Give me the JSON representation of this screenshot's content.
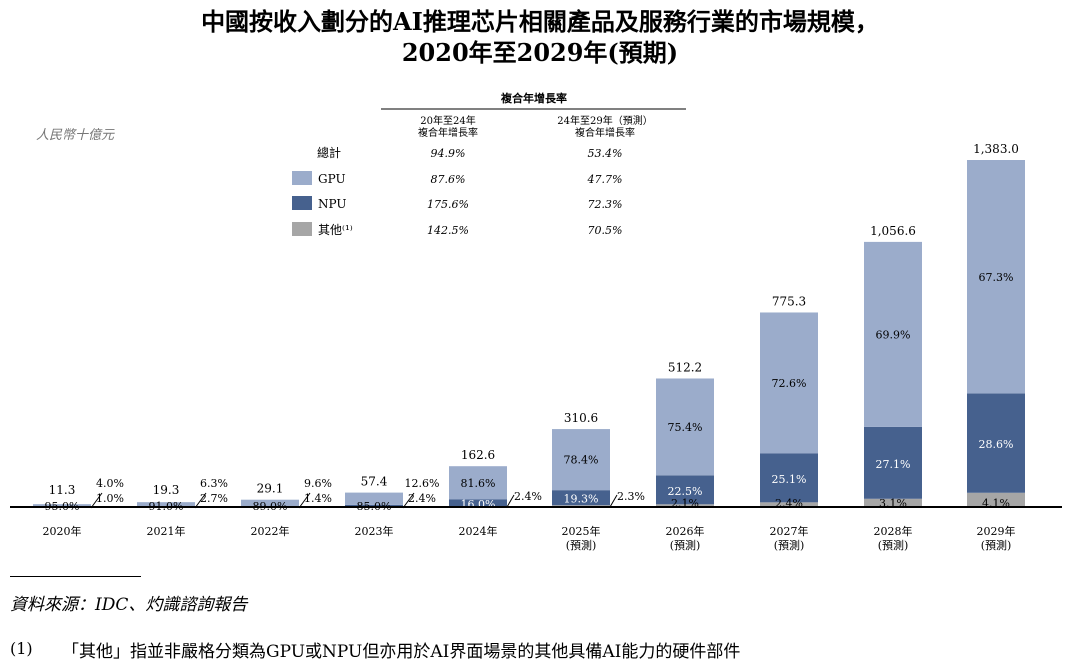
{
  "title_line1": "中國按收入劃分的AI推理芯片相關產品及服務行業的市場規模，",
  "title_line2": "2020年至2029年(預期)",
  "unit_label": "人民幣十億元",
  "cagr_table": {
    "header": "複合年增長率",
    "col1": [
      "20年至24年",
      "複合年增長率"
    ],
    "col2": [
      "24年至29年（預測）",
      "複合年增長率"
    ],
    "rows": [
      {
        "label": "總計",
        "swatch": "",
        "v1": "94.9%",
        "v2": "53.4%"
      },
      {
        "label": "GPU",
        "swatch": "#9baccb",
        "v1": "87.6%",
        "v2": "47.7%"
      },
      {
        "label": "NPU",
        "swatch": "#46618e",
        "v1": "175.6%",
        "v2": "72.3%"
      },
      {
        "label": "其他⁽¹⁾",
        "swatch": "#a6a6a6",
        "v1": "142.5%",
        "v2": "70.5%"
      }
    ]
  },
  "chart_data": {
    "type": "bar",
    "stacked": true,
    "categories": [
      "2020年",
      "2021年",
      "2022年",
      "2023年",
      "2024年",
      "2025年\n(預測)",
      "2026年\n(預測)",
      "2027年\n(預測)",
      "2028年\n(預測)",
      "2029年\n(預測)"
    ],
    "totals": [
      11.3,
      19.3,
      29.1,
      57.4,
      162.6,
      310.6,
      512.2,
      775.3,
      1056.6,
      1383.0
    ],
    "total_labels": [
      "11.3",
      "19.3",
      "29.1",
      "57.4",
      "162.6",
      "310.6",
      "512.2",
      "775.3",
      "1,056.6",
      "1,383.0"
    ],
    "series": [
      {
        "name": "GPU",
        "color": "#9baccb",
        "shares": [
          95.0,
          91.0,
          89.0,
          85.0,
          81.6,
          78.4,
          75.4,
          72.6,
          69.9,
          67.3
        ],
        "labels": [
          "95.0%",
          "91.0%",
          "89.0%",
          "85.0%",
          "81.6%",
          "78.4%",
          "75.4%",
          "72.6%",
          "69.9%",
          "67.3%"
        ]
      },
      {
        "name": "NPU",
        "color": "#46618e",
        "shares": [
          4.0,
          6.3,
          9.6,
          12.6,
          16.0,
          19.3,
          22.5,
          25.1,
          27.1,
          28.6
        ],
        "labels": [
          "4.0%",
          "6.3%",
          "9.6%",
          "12.6%",
          "16.0%",
          "19.3%",
          "22.5%",
          "25.1%",
          "27.1%",
          "28.6%"
        ]
      },
      {
        "name": "其他",
        "color": "#a6a6a6",
        "shares": [
          1.0,
          2.7,
          1.4,
          2.4,
          2.4,
          2.3,
          2.1,
          2.4,
          3.1,
          4.1
        ],
        "labels": [
          "1.0%",
          "2.7%",
          "1.4%",
          "2.4%",
          "2.4%",
          "2.3%",
          "2.1%",
          "2.4%",
          "3.1%",
          "4.1%"
        ]
      }
    ],
    "ylim": [
      0,
      1400
    ],
    "legend_position": "top-center"
  },
  "source": "資料來源：IDC、灼識諮詢報告",
  "note_number": "(1)",
  "note_text": "「其他」指並非嚴格分類為GPU或NPU但亦用於AI界面場景的其他具備AI能力的硬件部件"
}
